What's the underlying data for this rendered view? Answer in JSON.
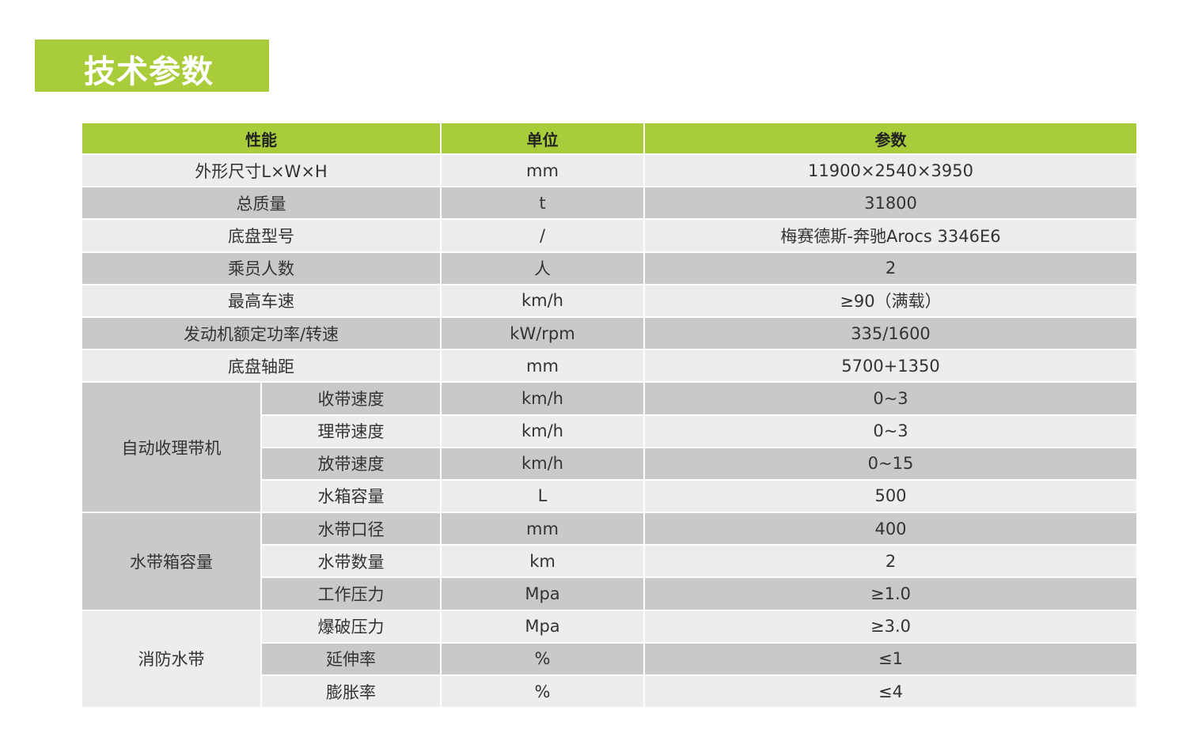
{
  "title": "技术参数",
  "colors": {
    "accent": "#a8cc3a",
    "row_light": "#ededee",
    "row_dark": "#c9c9ca"
  },
  "table": {
    "headers": [
      "性能",
      "单位",
      "参数"
    ],
    "rows": [
      {
        "label": "外形尺寸L×W×H",
        "unit": "mm",
        "value": "11900×2540×3950"
      },
      {
        "label": "总质量",
        "unit": "t",
        "value": "31800"
      },
      {
        "label": "底盘型号",
        "unit": "/",
        "value": "梅赛德斯-奔驰Arocs 3346E6"
      },
      {
        "label": "乘员人数",
        "unit": "人",
        "value": "2"
      },
      {
        "label": "最高车速",
        "unit": "km/h",
        "value": "≥90（满载）"
      },
      {
        "label": "发动机额定功率/转速",
        "unit": "kW/rpm",
        "value": "335/1600"
      },
      {
        "label": "底盘轴距",
        "unit": "mm",
        "value": "5700+1350"
      },
      {
        "group": "自动收理带机",
        "span": 4,
        "label": "收带速度",
        "unit": "km/h",
        "value": "0~3"
      },
      {
        "label": "理带速度",
        "unit": "km/h",
        "value": "0~3"
      },
      {
        "label": "放带速度",
        "unit": "km/h",
        "value": "0~15"
      },
      {
        "label": "水箱容量",
        "unit": "L",
        "value": "500"
      },
      {
        "group": "水带箱容量",
        "span": 3,
        "label": "水带口径",
        "unit": "mm",
        "value": "400"
      },
      {
        "label": "水带数量",
        "unit": "km",
        "value": "2"
      },
      {
        "label": "工作压力",
        "unit": "Mpa",
        "value": "≥1.0"
      },
      {
        "group": "消防水带",
        "span": 3,
        "label": "爆破压力",
        "unit": "Mpa",
        "value": "≥3.0"
      },
      {
        "label": "延伸率",
        "unit": "%",
        "value": "≤1"
      },
      {
        "label": "膨胀率",
        "unit": "%",
        "value": "≤4"
      }
    ]
  }
}
